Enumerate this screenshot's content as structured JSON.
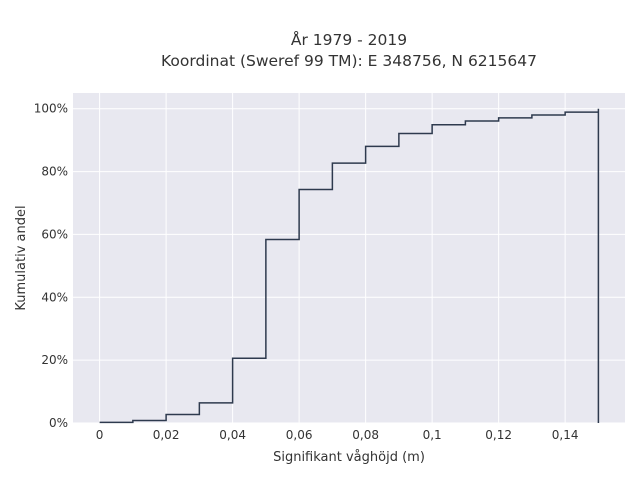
{
  "chart_data": {
    "type": "line",
    "subtype": "cumulative-step",
    "title_lines": [
      "År 1979 - 2019",
      "Koordinat (Sweref 99 TM): E 348756, N 6215647"
    ],
    "xlabel": "Signifikant våghöjd (m)",
    "ylabel": "Kumulativ andel",
    "xlim": [
      -0.008,
      0.158
    ],
    "ylim": [
      0,
      1.05
    ],
    "x_ticks": [
      0,
      0.02,
      0.04,
      0.06,
      0.08,
      0.1,
      0.12,
      0.14
    ],
    "x_tick_labels": [
      "0",
      "0,02",
      "0,04",
      "0,06",
      "0,08",
      "0,1",
      "0,12",
      "0,14"
    ],
    "y_ticks": [
      0,
      0.2,
      0.4,
      0.6,
      0.8,
      1.0
    ],
    "y_tick_labels": [
      "0%",
      "20%",
      "40%",
      "60%",
      "80%",
      "100%"
    ],
    "grid": true,
    "legend": "none",
    "series": [
      {
        "x": [
          0,
          0.01,
          0.02,
          0.03,
          0.04,
          0.05,
          0.06,
          0.07,
          0.08,
          0.09,
          0.1,
          0.11,
          0.12,
          0.13,
          0.14,
          0.15
        ],
        "y": [
          0.002,
          0.008,
          0.027,
          0.064,
          0.206,
          0.584,
          0.743,
          0.827,
          0.88,
          0.921,
          0.949,
          0.961,
          0.971,
          0.98,
          0.989,
          1.0
        ],
        "color": "#2e3a4e"
      }
    ]
  }
}
